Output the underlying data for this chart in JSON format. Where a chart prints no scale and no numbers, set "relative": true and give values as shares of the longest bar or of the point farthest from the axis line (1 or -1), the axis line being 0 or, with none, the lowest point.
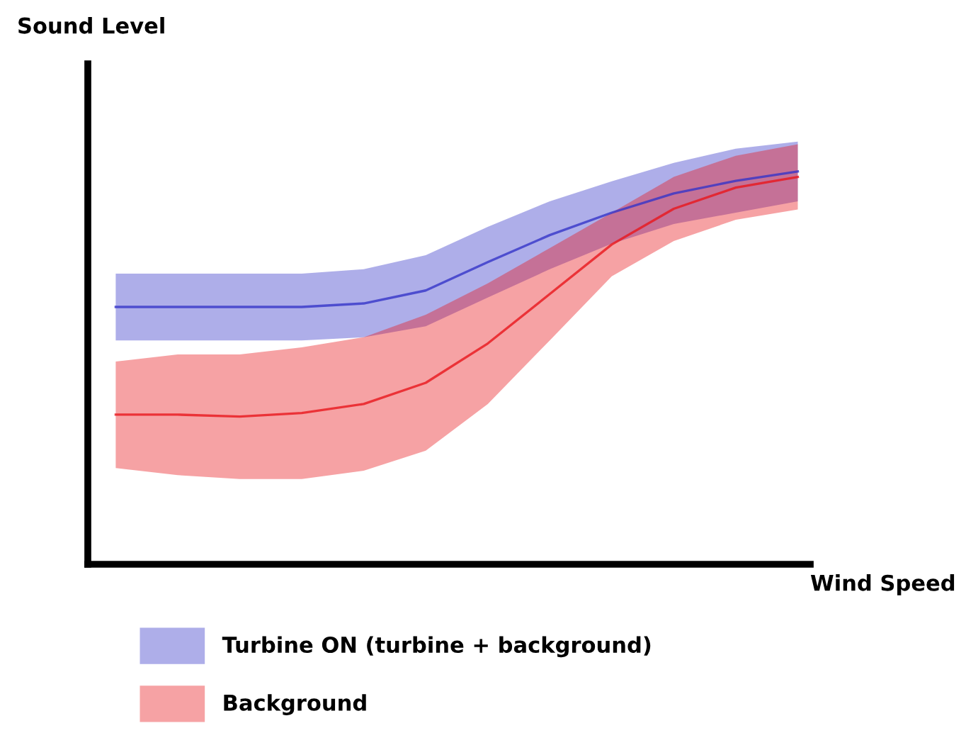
{
  "chart_data": {
    "type": "line",
    "relative": true,
    "xlabel": "Wind Speed",
    "annotations": [
      "Sound Level"
    ],
    "legend": "bottom",
    "grid": false,
    "categories": [
      null,
      null,
      null,
      null,
      null,
      null,
      null,
      null,
      null,
      null,
      null,
      null
    ],
    "series": [
      {
        "name": "Turbine ON (turbine + background)",
        "color": "#3535c8",
        "values": [
          0.655,
          0.655,
          0.655,
          0.655,
          0.664,
          0.697,
          0.769,
          0.838,
          0.895,
          0.944,
          0.976,
          1.0
        ],
        "lower": [
          0.57,
          0.57,
          0.57,
          0.57,
          0.578,
          0.606,
          0.679,
          0.751,
          0.816,
          0.866,
          0.895,
          0.924
        ],
        "upper": [
          0.74,
          0.74,
          0.74,
          0.74,
          0.751,
          0.787,
          0.859,
          0.924,
          0.975,
          1.022,
          1.058,
          1.076
        ]
      },
      {
        "name": "Background",
        "color": "#e8161c",
        "values": [
          0.381,
          0.381,
          0.376,
          0.385,
          0.408,
          0.462,
          0.562,
          0.688,
          0.814,
          0.905,
          0.959,
          0.986
        ],
        "lower": [
          0.245,
          0.227,
          0.217,
          0.217,
          0.238,
          0.289,
          0.408,
          0.57,
          0.733,
          0.823,
          0.877,
          0.903
        ],
        "upper": [
          0.516,
          0.534,
          0.534,
          0.552,
          0.578,
          0.635,
          0.715,
          0.805,
          0.895,
          0.986,
          1.04,
          1.069
        ]
      }
    ]
  }
}
